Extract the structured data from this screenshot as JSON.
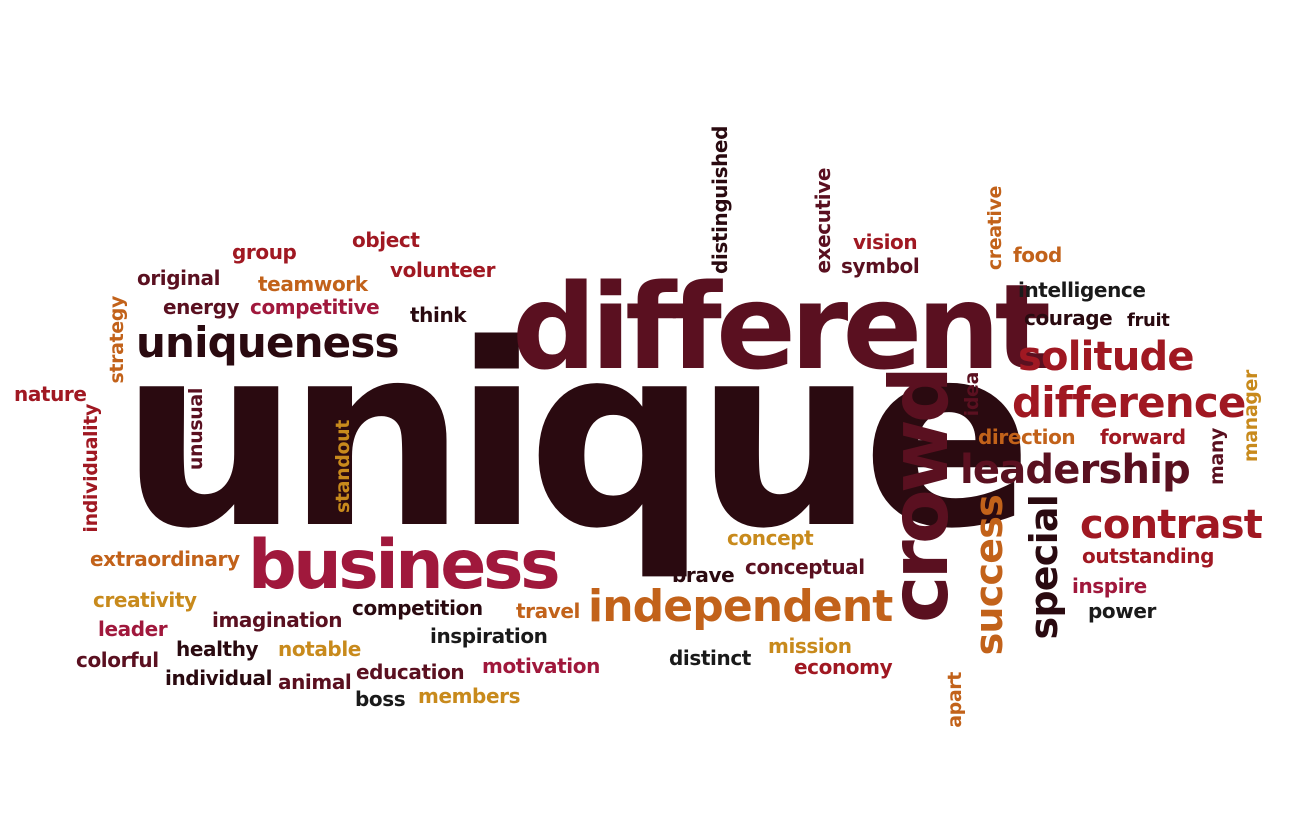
{
  "colors": {
    "dark": "#2a0a10",
    "maroon": "#5a1020",
    "red": "#a01822",
    "crimson": "#a0183c",
    "orange": "#c2621a",
    "gold": "#c88a1c",
    "black": "#1a1a1a"
  },
  "words": {
    "unique": "unique",
    "different": "different",
    "crowd": "crowd",
    "business": "business",
    "independent": "independent",
    "uniqueness": "uniqueness",
    "solitude": "solitude",
    "difference": "difference",
    "leadership": "leadership",
    "contrast": "contrast",
    "success": "success",
    "special": "special",
    "distinguished": "distinguished",
    "executive": "executive",
    "creative": "creative",
    "vision": "vision",
    "symbol": "symbol",
    "food": "food",
    "intelligence": "intelligence",
    "courage": "courage",
    "fruit": "fruit",
    "idea": "idea",
    "manager": "manager",
    "direction": "direction",
    "forward": "forward",
    "many": "many",
    "outstanding": "outstanding",
    "inspire": "inspire",
    "power": "power",
    "concept": "concept",
    "conceptual": "conceptual",
    "brave": "brave",
    "mission": "mission",
    "economy": "economy",
    "distinct": "distinct",
    "apart": "apart",
    "group": "group",
    "object": "object",
    "original": "original",
    "teamwork": "teamwork",
    "volunteer": "volunteer",
    "energy": "energy",
    "competitive": "competitive",
    "think": "think",
    "strategy": "strategy",
    "nature": "nature",
    "individuality": "individuality",
    "unusual": "unusual",
    "standout": "standout",
    "extraordinary": "extraordinary",
    "creativity": "creativity",
    "leader": "leader",
    "colorful": "colorful",
    "imagination": "imagination",
    "healthy": "healthy",
    "notable": "notable",
    "individual": "individual",
    "animal": "animal",
    "competition": "competition",
    "travel": "travel",
    "inspiration": "inspiration",
    "education": "education",
    "motivation": "motivation",
    "boss": "boss",
    "members": "members"
  }
}
